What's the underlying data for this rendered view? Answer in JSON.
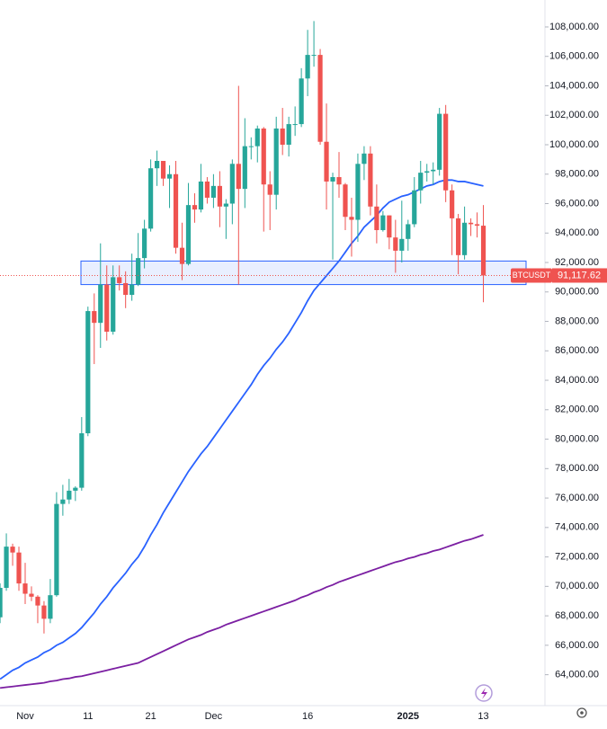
{
  "chart_data": {
    "type": "candlestick",
    "symbol": "BTCUSDT",
    "last_price": {
      "value": 91117.62,
      "label": "91,117.62"
    },
    "categories": [
      null,
      null,
      null,
      null,
      "Nov",
      null,
      null,
      null,
      null,
      null,
      null,
      null,
      null,
      null,
      "11",
      null,
      null,
      null,
      null,
      null,
      null,
      null,
      null,
      null,
      "21",
      null,
      null,
      null,
      null,
      null,
      null,
      null,
      null,
      null,
      "Dec",
      null,
      null,
      null,
      null,
      null,
      null,
      null,
      null,
      null,
      null,
      null,
      null,
      null,
      null,
      "16",
      null,
      null,
      null,
      null,
      null,
      null,
      null,
      null,
      null,
      null,
      null,
      null,
      null,
      null,
      null,
      "2025",
      null,
      null,
      null,
      null,
      null,
      null,
      null,
      null,
      null,
      null,
      null,
      "13"
    ],
    "open": [
      67900,
      69900,
      72700,
      72300,
      70200,
      69500,
      69300,
      68700,
      67800,
      69400,
      75600,
      75900,
      76500,
      76700,
      80400,
      88700,
      87900,
      90500,
      87300,
      91000,
      90600,
      89800,
      90500,
      92300,
      94300,
      98400,
      98900,
      97700,
      98000,
      93000,
      91900,
      95900,
      95600,
      97500,
      96400,
      97200,
      95800,
      96000,
      98700,
      97000,
      99900,
      99900,
      101100,
      97300,
      96600,
      101100,
      100000,
      101400,
      101400,
      104500,
      106100,
      106100,
      100200,
      97500,
      97800,
      97300,
      95100,
      94900,
      98700,
      99400,
      95800,
      94200,
      95200,
      93700,
      92800,
      93600,
      94600,
      96900,
      98100,
      98200,
      98300,
      102100,
      96900,
      95000,
      92500,
      94700,
      94600,
      94500
    ],
    "high": [
      70200,
      73600,
      72900,
      72700,
      71600,
      70000,
      69400,
      69000,
      70500,
      76400,
      76900,
      77300,
      76800,
      81500,
      89000,
      89900,
      93300,
      91800,
      91800,
      91800,
      91400,
      92600,
      94000,
      94900,
      99000,
      99600,
      98800,
      98600,
      98900,
      94700,
      97400,
      96700,
      98700,
      97800,
      98000,
      98200,
      96300,
      99000,
      104000,
      101800,
      100500,
      101300,
      101200,
      98200,
      101900,
      102500,
      101900,
      102600,
      105200,
      107800,
      108400,
      106500,
      102800,
      98100,
      99500,
      97400,
      96400,
      99400,
      99900,
      99900,
      97300,
      95500,
      95200,
      94900,
      96200,
      94900,
      97800,
      98900,
      98700,
      98800,
      102500,
      102700,
      97300,
      95300,
      95800,
      95000,
      95400,
      95900
    ],
    "low": [
      67500,
      69700,
      71400,
      69700,
      68800,
      69000,
      67500,
      66800,
      67500,
      69300,
      74800,
      75600,
      75800,
      76500,
      80200,
      85100,
      86200,
      86700,
      87100,
      90100,
      88900,
      89400,
      90400,
      91600,
      94100,
      97200,
      97200,
      95700,
      92600,
      90800,
      91800,
      94700,
      95400,
      96000,
      95700,
      94400,
      93600,
      94600,
      90500,
      95700,
      99000,
      98800,
      94100,
      94200,
      95600,
      99300,
      99200,
      100600,
      101200,
      103300,
      105300,
      100000,
      95600,
      92200,
      96400,
      94200,
      92400,
      93400,
      97600,
      95200,
      93300,
      94100,
      92900,
      91300,
      92000,
      92800,
      94400,
      96000,
      97500,
      97300,
      97900,
      96100,
      92500,
      91200,
      92200,
      93800,
      93700,
      89300
    ],
    "close": [
      69900,
      72700,
      72300,
      70200,
      69500,
      69300,
      68700,
      67800,
      69400,
      75600,
      75900,
      76500,
      76700,
      80400,
      88700,
      87900,
      90500,
      87300,
      91000,
      90600,
      89800,
      90500,
      92300,
      94300,
      98400,
      98900,
      97700,
      98000,
      93000,
      91900,
      95900,
      95600,
      97500,
      96400,
      97200,
      95800,
      96000,
      98700,
      97000,
      99900,
      99900,
      101100,
      97300,
      96600,
      101100,
      100000,
      101400,
      101400,
      104500,
      106100,
      106100,
      100200,
      97500,
      97800,
      97300,
      95100,
      94900,
      98700,
      99400,
      95800,
      94200,
      95200,
      93700,
      92800,
      93600,
      94600,
      96900,
      98100,
      98200,
      98300,
      102100,
      96900,
      95000,
      92500,
      94700,
      94600,
      94500,
      91117.62
    ],
    "up_color": "#26a69a",
    "down_color": "#ef5350",
    "series": [
      {
        "color": "#2962ff",
        "values": [
          63700,
          64000,
          64300,
          64500,
          64800,
          65000,
          65200,
          65500,
          65700,
          66000,
          66200,
          66500,
          66800,
          67200,
          67700,
          68200,
          68800,
          69300,
          69900,
          70400,
          70900,
          71500,
          72000,
          72700,
          73500,
          74200,
          75000,
          75700,
          76400,
          77100,
          77800,
          78400,
          79000,
          79500,
          80100,
          80700,
          81300,
          81900,
          82500,
          83100,
          83700,
          84400,
          85000,
          85500,
          86100,
          86600,
          87200,
          87900,
          88600,
          89400,
          90100,
          90600,
          91100,
          91600,
          92100,
          92700,
          93300,
          93800,
          94400,
          94800,
          95200,
          95700,
          96100,
          96300,
          96500,
          96600,
          96800,
          97000,
          97200,
          97300,
          97500,
          97600,
          97600,
          97500,
          97500,
          97400,
          97300,
          97200
        ]
      },
      {
        "color": "#7b1fa2",
        "values": [
          63100,
          63150,
          63200,
          63250,
          63300,
          63350,
          63400,
          63450,
          63550,
          63600,
          63700,
          63750,
          63850,
          63900,
          64000,
          64100,
          64200,
          64300,
          64400,
          64500,
          64600,
          64700,
          64800,
          65000,
          65200,
          65400,
          65600,
          65800,
          66000,
          66200,
          66400,
          66550,
          66700,
          66900,
          67050,
          67200,
          67400,
          67550,
          67700,
          67850,
          68000,
          68150,
          68300,
          68450,
          68600,
          68750,
          68900,
          69050,
          69250,
          69400,
          69600,
          69750,
          69950,
          70100,
          70300,
          70450,
          70600,
          70750,
          70900,
          71050,
          71200,
          71350,
          71500,
          71650,
          71750,
          71900,
          72000,
          72150,
          72250,
          72400,
          72500,
          72650,
          72800,
          72950,
          73100,
          73200,
          73350,
          73500
        ]
      }
    ],
    "zone": {
      "low": 90500,
      "high": 92100,
      "color": "#2962ff"
    },
    "ylim": [
      61900,
      109830
    ],
    "yticks": [
      {
        "value": 64000,
        "label": "64,000.00"
      },
      {
        "value": 66000,
        "label": "66,000.00"
      },
      {
        "value": 68000,
        "label": "68,000.00"
      },
      {
        "value": 70000,
        "label": "70,000.00"
      },
      {
        "value": 72000,
        "label": "72,000.00"
      },
      {
        "value": 74000,
        "label": "74,000.00"
      },
      {
        "value": 76000,
        "label": "76,000.00"
      },
      {
        "value": 78000,
        "label": "78,000.00"
      },
      {
        "value": 80000,
        "label": "80,000.00"
      },
      {
        "value": 82000,
        "label": "82,000.00"
      },
      {
        "value": 84000,
        "label": "84,000.00"
      },
      {
        "value": 86000,
        "label": "86,000.00"
      },
      {
        "value": 88000,
        "label": "88,000.00"
      },
      {
        "value": 90000,
        "label": "90,000.00"
      },
      {
        "value": 92000,
        "label": "92,000.00"
      },
      {
        "value": 94000,
        "label": "94,000.00"
      },
      {
        "value": 96000,
        "label": "96,000.00"
      },
      {
        "value": 98000,
        "label": "98,000.00"
      },
      {
        "value": 100000,
        "label": "100,000.00"
      },
      {
        "value": 102000,
        "label": "102,000.00"
      },
      {
        "value": 104000,
        "label": "104,000.00"
      },
      {
        "value": 106000,
        "label": "106,000.00"
      },
      {
        "value": 108000,
        "label": "108,000.00"
      }
    ]
  }
}
